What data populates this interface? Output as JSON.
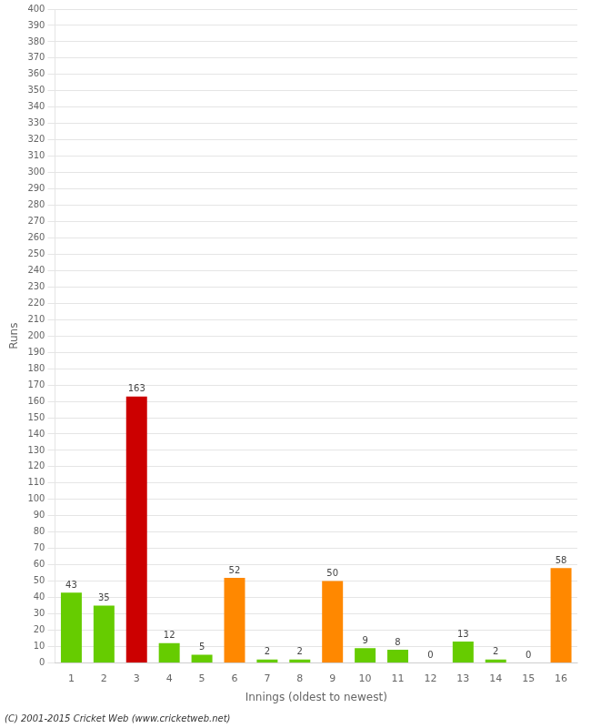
{
  "chart_data": {
    "type": "bar",
    "xlabel": "Innings (oldest to newest)",
    "ylabel": "Runs",
    "annotations": [
      "(C) 2001-2015 Cricket Web (www.cricketweb.net)"
    ],
    "categories": [
      "1",
      "2",
      "3",
      "4",
      "5",
      "6",
      "7",
      "8",
      "9",
      "10",
      "11",
      "12",
      "13",
      "14",
      "15",
      "16"
    ],
    "values": [
      43,
      35,
      163,
      12,
      5,
      52,
      2,
      2,
      50,
      9,
      8,
      0,
      13,
      2,
      0,
      58
    ],
    "colors": [
      "#66cc00",
      "#66cc00",
      "#cc0000",
      "#66cc00",
      "#66cc00",
      "#ff8800",
      "#66cc00",
      "#66cc00",
      "#ff8800",
      "#66cc00",
      "#66cc00",
      "#66cc00",
      "#66cc00",
      "#66cc00",
      "#66cc00",
      "#ff8800"
    ],
    "ylim": [
      0,
      400
    ],
    "yticks": [
      0,
      10,
      20,
      30,
      40,
      50,
      60,
      70,
      80,
      90,
      100,
      110,
      120,
      130,
      140,
      150,
      160,
      170,
      180,
      190,
      200,
      210,
      220,
      230,
      240,
      250,
      260,
      270,
      280,
      290,
      300,
      310,
      320,
      330,
      340,
      350,
      360,
      370,
      380,
      390,
      400
    ],
    "grid": true,
    "data_labels": true
  }
}
